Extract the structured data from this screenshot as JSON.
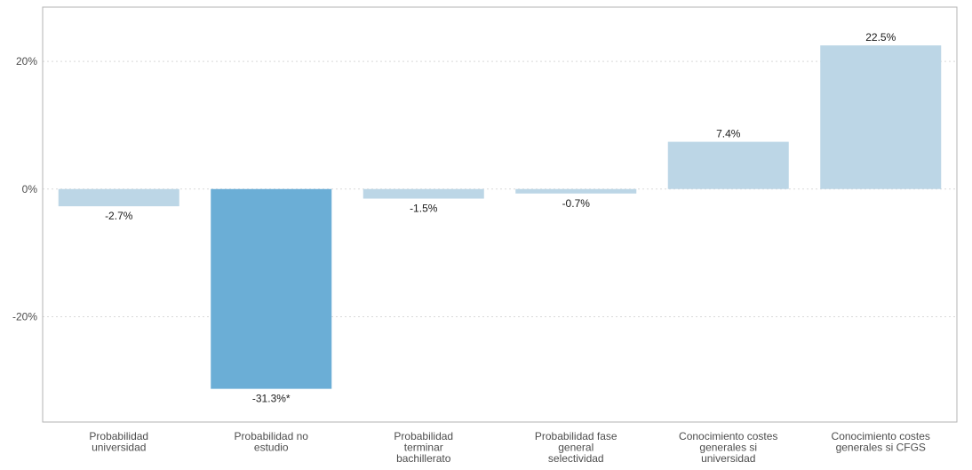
{
  "chart_data": {
    "type": "bar",
    "categories": [
      [
        "Probabilidad",
        "universidad"
      ],
      [
        "Probabilidad no",
        "estudio"
      ],
      [
        "Probabilidad",
        "terminar",
        "bachillerato"
      ],
      [
        "Probabilidad fase",
        "general",
        "selectividad"
      ],
      [
        "Conocimiento costes",
        "generales si",
        "universidad"
      ],
      [
        "Conocimiento costes",
        "generales si CFGS"
      ]
    ],
    "values": [
      -2.7,
      -31.3,
      -1.5,
      -0.7,
      7.4,
      22.5
    ],
    "labels": [
      "-2.7%",
      "-31.3%*",
      "-1.5%",
      "-0.7%",
      "7.4%",
      "22.5%"
    ],
    "significant": [
      false,
      true,
      false,
      false,
      false,
      false
    ],
    "y_ticks": [
      20,
      0,
      -20
    ],
    "y_tick_labels": [
      "20%",
      "0%",
      "-20%"
    ],
    "ylim": [
      -36.5,
      28.5
    ],
    "grid": "horizontal dotted",
    "colors": {
      "bar": "#bcd6e6",
      "bar_significant": "#6baed6",
      "grid": "#d9d9d9",
      "axis": "#b3b3b3"
    }
  }
}
